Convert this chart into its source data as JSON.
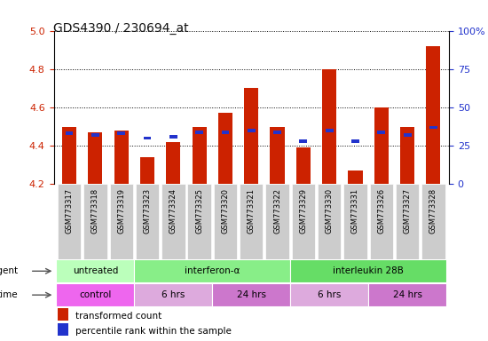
{
  "title": "GDS4390 / 230694_at",
  "samples": [
    "GSM773317",
    "GSM773318",
    "GSM773319",
    "GSM773323",
    "GSM773324",
    "GSM773325",
    "GSM773320",
    "GSM773321",
    "GSM773322",
    "GSM773329",
    "GSM773330",
    "GSM773331",
    "GSM773326",
    "GSM773327",
    "GSM773328"
  ],
  "bar_values": [
    4.5,
    4.47,
    4.48,
    4.34,
    4.42,
    4.5,
    4.57,
    4.7,
    4.5,
    4.39,
    4.8,
    4.27,
    4.6,
    4.5,
    4.92
  ],
  "blue_pct": [
    33,
    32,
    33,
    30,
    31,
    34,
    34,
    35,
    34,
    28,
    35,
    28,
    34,
    32,
    37
  ],
  "ymin": 4.2,
  "ymax": 5.0,
  "yticks": [
    4.2,
    4.4,
    4.6,
    4.8,
    5.0
  ],
  "right_yticks": [
    0,
    25,
    50,
    75,
    100
  ],
  "bar_color": "#cc2200",
  "blue_color": "#2233cc",
  "bar_width": 0.55,
  "agent_groups": [
    {
      "label": "untreated",
      "start": 0,
      "end": 3,
      "color": "#bbffbb"
    },
    {
      "label": "interferon-α",
      "start": 3,
      "end": 9,
      "color": "#88ee88"
    },
    {
      "label": "interleukin 28B",
      "start": 9,
      "end": 15,
      "color": "#66dd66"
    }
  ],
  "time_groups": [
    {
      "label": "control",
      "start": 0,
      "end": 3,
      "color": "#ee66ee"
    },
    {
      "label": "6 hrs",
      "start": 3,
      "end": 6,
      "color": "#ddaadd"
    },
    {
      "label": "24 hrs",
      "start": 6,
      "end": 9,
      "color": "#cc77cc"
    },
    {
      "label": "6 hrs",
      "start": 9,
      "end": 12,
      "color": "#ddaadd"
    },
    {
      "label": "24 hrs",
      "start": 12,
      "end": 15,
      "color": "#cc77cc"
    }
  ],
  "sample_box_color": "#cccccc",
  "left_tick_color": "#cc2200",
  "right_tick_color": "#2233cc"
}
